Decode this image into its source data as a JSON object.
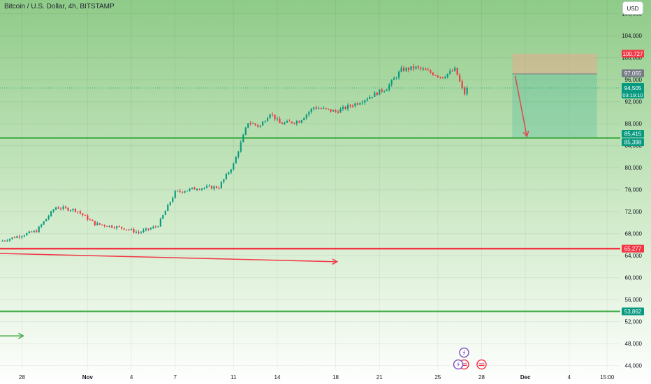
{
  "header": {
    "title": "Bitcoin / U.S. Dollar, 4h, BITSTAMP"
  },
  "currency_button": {
    "label": "USD"
  },
  "chart_data": {
    "type": "candlestick",
    "y_axis_ticks": [
      44000,
      48000,
      52000,
      56000,
      60000,
      64000,
      68000,
      72000,
      76000,
      80000,
      84000,
      88000,
      92000,
      96000,
      100000,
      104000,
      108000
    ],
    "y_tick_labels": [
      "44,000",
      "48,000",
      "52,000",
      "56,000",
      "60,000",
      "64,000",
      "68,000",
      "72,000",
      "76,000",
      "80,000",
      "84,000",
      "88,000",
      "92,000",
      "96,000",
      "100,000",
      "104,000",
      "108,000"
    ],
    "ylim": [
      43200,
      110500
    ],
    "x_tick_labels": [
      {
        "label": "28",
        "day": -4.5
      },
      {
        "label": "Nov",
        "day": 0
      },
      {
        "label": "4",
        "day": 3
      },
      {
        "label": "7",
        "day": 6
      },
      {
        "label": "11",
        "day": 10
      },
      {
        "label": "14",
        "day": 13
      },
      {
        "label": "18",
        "day": 17
      },
      {
        "label": "21",
        "day": 20
      },
      {
        "label": "25",
        "day": 24
      },
      {
        "label": "28",
        "day": 27
      },
      {
        "label": "Dec",
        "day": 30
      },
      {
        "label": "4",
        "day": 33
      },
      {
        "label": "15:00",
        "day": 35.6
      }
    ],
    "xlim": [
      -6,
      36.5
    ],
    "key_points": [
      {
        "day": -6,
        "price": 66600
      },
      {
        "day": -3.5,
        "price": 68500
      },
      {
        "day": -2.2,
        "price": 72800
      },
      {
        "day": -0.8,
        "price": 72300
      },
      {
        "day": 0.5,
        "price": 69800
      },
      {
        "day": 2.5,
        "price": 69000
      },
      {
        "day": 3.5,
        "price": 68200
      },
      {
        "day": 4.8,
        "price": 69400
      },
      {
        "day": 5.6,
        "price": 73500
      },
      {
        "day": 6.0,
        "price": 75500
      },
      {
        "day": 7.5,
        "price": 76300
      },
      {
        "day": 9.0,
        "price": 76500
      },
      {
        "day": 10.0,
        "price": 80600
      },
      {
        "day": 11.0,
        "price": 88300
      },
      {
        "day": 11.8,
        "price": 87500
      },
      {
        "day": 12.5,
        "price": 90000
      },
      {
        "day": 13.2,
        "price": 88000
      },
      {
        "day": 14.5,
        "price": 88500
      },
      {
        "day": 15.5,
        "price": 91000
      },
      {
        "day": 17.0,
        "price": 90200
      },
      {
        "day": 18.5,
        "price": 91800
      },
      {
        "day": 20.5,
        "price": 94500
      },
      {
        "day": 21.5,
        "price": 97800
      },
      {
        "day": 22.5,
        "price": 98200
      },
      {
        "day": 23.2,
        "price": 97600
      },
      {
        "day": 24.3,
        "price": 96500
      },
      {
        "day": 25.2,
        "price": 97900
      },
      {
        "day": 25.8,
        "price": 93300
      },
      {
        "day": 26.0,
        "price": 94505
      }
    ],
    "horizontal_lines": [
      {
        "price": 85415,
        "color": "#4caf50"
      },
      {
        "price": 65277,
        "color": "#f23645"
      },
      {
        "price": 53862,
        "color": "#4caf50"
      }
    ],
    "short_position": {
      "day_start": 29.1,
      "day_end": 34.9,
      "entry": 97055,
      "stop": 100727,
      "target": 85398
    },
    "arrows": [
      {
        "day_start": -6,
        "price_start": 64400,
        "day_end": 17.1,
        "price_end": 62900,
        "color": "#f23645"
      },
      {
        "day_start": -6,
        "price_start": 49400,
        "day_end": -4.4,
        "price_end": 49400,
        "color": "#4caf50"
      },
      {
        "day_start": 29.3,
        "price_start": 96700,
        "day_end": 30.1,
        "price_end": 85700,
        "color": "#e5454d"
      }
    ],
    "price_labels": [
      {
        "label": "100,727",
        "price": 100727,
        "bg": "#f23645"
      },
      {
        "label": "97,055",
        "price": 97055,
        "bg": "#787b86"
      },
      {
        "label": "94,505",
        "sub": "03:19:10",
        "price": 94505,
        "bg": "#089981"
      },
      {
        "label": "85,415",
        "price": 85415,
        "bg": "#089981"
      },
      {
        "label": "85,398",
        "price": 85398,
        "bg": "#089981"
      },
      {
        "label": "65,277",
        "price": 65277,
        "bg": "#f23645"
      },
      {
        "label": "53,862",
        "price": 53862,
        "bg": "#089981"
      }
    ],
    "events": [
      {
        "day": 25.8,
        "kind": "lightning"
      },
      {
        "day": 25.8,
        "kind": "us-flag"
      },
      {
        "day": 25.4,
        "kind": "lightning-flag"
      },
      {
        "day": 27.0,
        "kind": "us-flag"
      }
    ],
    "colors": {
      "up": "#089981",
      "down": "#f23645"
    }
  }
}
